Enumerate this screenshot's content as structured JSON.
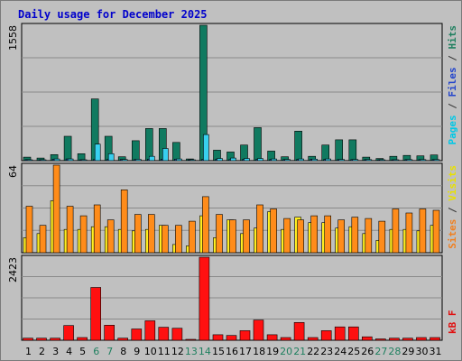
{
  "chart_data": [
    {
      "type": "bar",
      "title": "Daily usage for December 2025",
      "max_label": "1558",
      "ylim": [
        0,
        1558
      ],
      "grid": true,
      "legend_right": [
        {
          "text": "Pages",
          "color": "#00c8e6"
        },
        {
          "text": " / ",
          "color": "#333333"
        },
        {
          "text": "Files",
          "color": "#2244cc"
        },
        {
          "text": " / ",
          "color": "#333333"
        },
        {
          "text": "Hits",
          "color": "#208060"
        }
      ],
      "categories": [
        "1",
        "2",
        "3",
        "4",
        "5",
        "6",
        "7",
        "8",
        "9",
        "10",
        "11",
        "12",
        "13",
        "14",
        "15",
        "16",
        "17",
        "18",
        "19",
        "20",
        "21",
        "22",
        "23",
        "24",
        "25",
        "26",
        "27",
        "28",
        "29",
        "30",
        "31"
      ],
      "weekend_days": [
        "6",
        "7",
        "13",
        "14",
        "20",
        "21",
        "27",
        "28"
      ],
      "series": [
        {
          "name": "Hits",
          "color": "#107a60",
          "values": [
            40,
            30,
            70,
            280,
            80,
            710,
            280,
            45,
            230,
            370,
            370,
            210,
            20,
            1558,
            120,
            100,
            180,
            380,
            110,
            45,
            340,
            50,
            180,
            240,
            240,
            40,
            25,
            50,
            60,
            55,
            65
          ]
        },
        {
          "name": "Files",
          "color": "#1e5ab4",
          "values": [
            12,
            10,
            18,
            20,
            10,
            12,
            14,
            14,
            12,
            16,
            18,
            18,
            6,
            14,
            14,
            12,
            14,
            14,
            12,
            12,
            14,
            16,
            14,
            12,
            12,
            12,
            8,
            10,
            12,
            12,
            12
          ]
        },
        {
          "name": "Pages",
          "color": "#38d0f0",
          "values": [
            8,
            8,
            20,
            20,
            10,
            190,
            80,
            14,
            16,
            50,
            140,
            20,
            6,
            300,
            25,
            30,
            25,
            25,
            20,
            14,
            20,
            18,
            20,
            14,
            14,
            12,
            6,
            10,
            12,
            12,
            12
          ]
        }
      ]
    },
    {
      "type": "bar",
      "max_label": "64",
      "ylim": [
        0,
        64
      ],
      "grid": true,
      "legend_right": [
        {
          "text": "Sites",
          "color": "#f08020"
        },
        {
          "text": " / ",
          "color": "#333333"
        },
        {
          "text": "Visits",
          "color": "#e8e000"
        }
      ],
      "categories": [
        "1",
        "2",
        "3",
        "4",
        "5",
        "6",
        "7",
        "8",
        "9",
        "10",
        "11",
        "12",
        "13",
        "14",
        "15",
        "16",
        "17",
        "18",
        "19",
        "20",
        "21",
        "22",
        "23",
        "24",
        "25",
        "26",
        "27",
        "28",
        "29",
        "30",
        "31"
      ],
      "series": [
        {
          "name": "Visits",
          "color": "#ffee20",
          "values": [
            11,
            14,
            38,
            17,
            17,
            19,
            19,
            17,
            16,
            17,
            20,
            6,
            5,
            27,
            11,
            24,
            14,
            18,
            30,
            17,
            26,
            22,
            22,
            18,
            19,
            14,
            9,
            17,
            17,
            16,
            20
          ]
        },
        {
          "name": "Sites",
          "color": "#ff8c1a",
          "values": [
            34,
            20,
            64,
            34,
            27,
            35,
            24,
            46,
            28,
            28,
            20,
            20,
            23,
            41,
            28,
            24,
            24,
            35,
            32,
            25,
            24,
            27,
            27,
            24,
            26,
            25,
            23,
            32,
            29,
            32,
            31
          ]
        }
      ]
    },
    {
      "type": "bar",
      "max_label": "2423",
      "ylim": [
        0,
        2423
      ],
      "grid": true,
      "legend_right": [
        {
          "text": "kB F",
          "color": "#e01010"
        }
      ],
      "categories": [
        "1",
        "2",
        "3",
        "4",
        "5",
        "6",
        "7",
        "8",
        "9",
        "10",
        "11",
        "12",
        "13",
        "14",
        "15",
        "16",
        "17",
        "18",
        "19",
        "20",
        "21",
        "22",
        "23",
        "24",
        "25",
        "26",
        "27",
        "28",
        "29",
        "30",
        "31"
      ],
      "series": [
        {
          "name": "kB F",
          "color": "#ff1010",
          "values": [
            60,
            60,
            60,
            430,
            80,
            1540,
            440,
            60,
            330,
            570,
            380,
            350,
            20,
            2423,
            160,
            140,
            280,
            590,
            160,
            80,
            520,
            80,
            280,
            390,
            390,
            100,
            40,
            60,
            60,
            80,
            80
          ]
        }
      ]
    }
  ]
}
